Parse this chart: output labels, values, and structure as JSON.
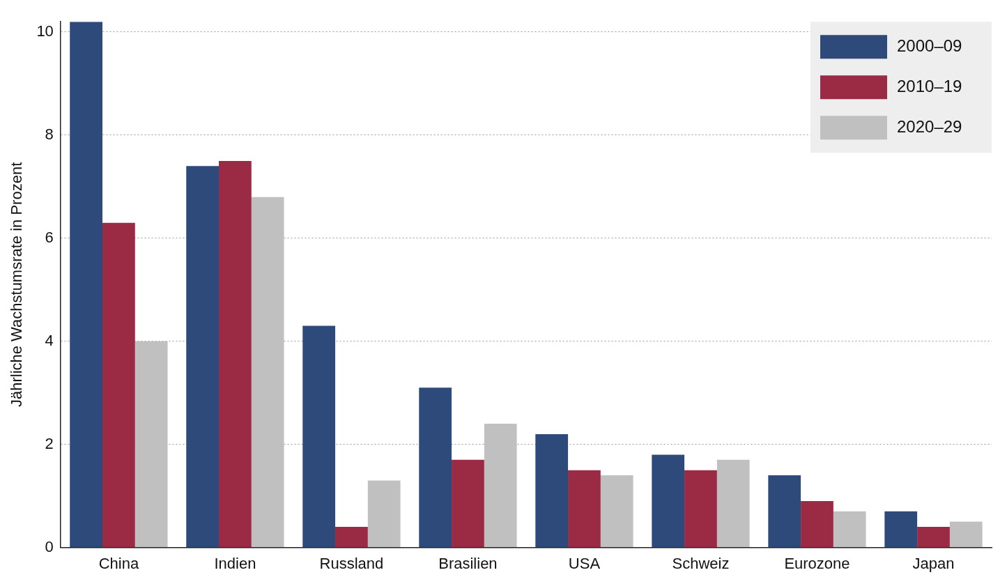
{
  "chart_data": {
    "type": "bar",
    "ylabel": "Jährliche Wachstumsrate in Prozent",
    "categories": [
      "China",
      "Indien",
      "Russland",
      "Brasilien",
      "USA",
      "Schweiz",
      "Eurozone",
      "Japan"
    ],
    "series": [
      {
        "name": "2000–09",
        "color": "#2e4a7a",
        "values": [
          10.2,
          7.4,
          4.3,
          3.1,
          2.2,
          1.8,
          1.4,
          0.7
        ]
      },
      {
        "name": "2010–19",
        "color": "#9b2a45",
        "values": [
          6.3,
          7.5,
          0.4,
          1.7,
          1.5,
          1.5,
          0.9,
          0.4
        ]
      },
      {
        "name": "2020–29",
        "color": "#c0c0c0",
        "values": [
          4.0,
          6.8,
          1.3,
          2.4,
          1.4,
          1.7,
          0.7,
          0.5
        ]
      }
    ],
    "ylim": [
      0,
      10.2
    ],
    "yticks": [
      0,
      2,
      4,
      6,
      8,
      10
    ],
    "grid": "y",
    "legend": "top right"
  }
}
